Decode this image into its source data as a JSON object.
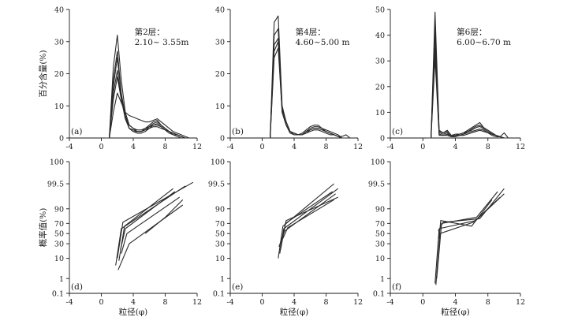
{
  "chart_data": [
    {
      "id": "a",
      "type": "line",
      "panel_label": "(a)",
      "ylabel": "百分含量(%)",
      "xlabel": "",
      "annotation": [
        "第2层：",
        "2.10~ 3.55m"
      ],
      "xlim": [
        -4,
        12
      ],
      "ylim": [
        0,
        40
      ],
      "x_ticks": [
        -4,
        0,
        4,
        8,
        12
      ],
      "y_ticks": [
        0,
        10,
        20,
        30,
        40
      ],
      "series": [
        {
          "x": [
            0.5,
            1,
            1.5,
            2,
            2.5,
            3,
            3.5,
            4,
            4.5,
            5,
            5.5,
            6,
            6.5,
            7,
            7.5,
            8,
            8.5,
            9,
            9.5,
            10,
            10.5,
            11
          ],
          "y": [
            0,
            0,
            22,
            32,
            18,
            8,
            4,
            3,
            2.5,
            2.5,
            3,
            4,
            5,
            5.5,
            4,
            3,
            2,
            1.5,
            1,
            0.5,
            0,
            0
          ]
        },
        {
          "x": [
            0.5,
            1,
            1.5,
            2,
            2.5,
            3,
            3.5,
            4,
            4.5,
            5,
            5.5,
            6,
            6.5,
            7,
            7.5,
            8,
            8.5,
            9,
            9.5,
            10,
            10.5,
            11
          ],
          "y": [
            0,
            0,
            18,
            27,
            14,
            7,
            3,
            2.5,
            2,
            2,
            2.5,
            3.5,
            4.5,
            5,
            4,
            3,
            2,
            1,
            1,
            0.5,
            0,
            0
          ]
        },
        {
          "x": [
            0.5,
            1,
            1.5,
            2,
            2.5,
            3,
            3.5,
            4,
            4.5,
            5,
            5.5,
            6,
            6.5,
            7,
            7.5,
            8,
            8.5,
            9,
            9.5,
            10,
            10.5,
            11
          ],
          "y": [
            0,
            0,
            16,
            25,
            13,
            6,
            3,
            2,
            2,
            2,
            3,
            3.5,
            4,
            4.5,
            3.5,
            2.5,
            2,
            1.5,
            1,
            0.5,
            0,
            0
          ]
        },
        {
          "x": [
            0.5,
            1,
            1.5,
            2,
            2.5,
            3,
            3.5,
            4,
            4.5,
            5,
            5.5,
            6,
            6.5,
            7,
            7.5,
            8,
            8.5,
            9,
            9.5,
            10,
            10.5,
            11
          ],
          "y": [
            0,
            0,
            14,
            21,
            12,
            6,
            3,
            2,
            1.5,
            1.5,
            2,
            3,
            4,
            4,
            3.5,
            2.5,
            1.5,
            1,
            0.5,
            0,
            0,
            0
          ]
        },
        {
          "x": [
            0.5,
            1,
            1.5,
            2,
            2.5,
            3,
            3.5,
            4,
            4.5,
            5,
            5.5,
            6,
            6.5,
            7,
            7.5,
            8,
            8.5,
            9,
            9.5,
            10,
            10.5,
            11
          ],
          "y": [
            0,
            0,
            12,
            19,
            12,
            7,
            4,
            3,
            2,
            2,
            2.5,
            3,
            3.5,
            3.5,
            3,
            2.5,
            2,
            1.5,
            1,
            0.5,
            0,
            0
          ]
        },
        {
          "x": [
            0.5,
            1,
            1.5,
            2,
            2.5,
            3,
            3.5,
            4,
            4.5,
            5,
            5.5,
            6,
            6.5,
            7,
            7.5,
            8,
            8.5,
            9,
            9.5,
            10,
            10.5,
            11
          ],
          "y": [
            0,
            0,
            8,
            14,
            11,
            8,
            7,
            6.5,
            6,
            5.5,
            5,
            5,
            5.5,
            6,
            5,
            4,
            3,
            2,
            1.5,
            1,
            0.5,
            0
          ]
        }
      ]
    },
    {
      "id": "b",
      "type": "line",
      "panel_label": "(b)",
      "ylabel": "",
      "xlabel": "",
      "annotation": [
        "第4层：",
        "4.60~5.00 m"
      ],
      "xlim": [
        -4,
        12
      ],
      "ylim": [
        0,
        40
      ],
      "x_ticks": [
        -4,
        0,
        4,
        8,
        12
      ],
      "y_ticks": [
        0,
        10,
        20,
        30,
        40
      ],
      "series": [
        {
          "x": [
            0.5,
            1,
            1.5,
            2,
            2.5,
            3,
            3.5,
            4,
            4.5,
            5,
            5.5,
            6,
            6.5,
            7,
            7.5,
            8,
            8.5,
            9,
            9.5,
            10,
            10.5
          ],
          "y": [
            0,
            0,
            36,
            38,
            10,
            5,
            2,
            1.5,
            1,
            1.5,
            2.5,
            3.5,
            4,
            4,
            3,
            2.5,
            2,
            1.5,
            1,
            0,
            0
          ]
        },
        {
          "x": [
            0.5,
            1,
            1.5,
            2,
            2.5,
            3,
            3.5,
            4,
            4.5,
            5,
            5.5,
            6,
            6.5,
            7,
            7.5,
            8,
            8.5,
            9,
            9.5,
            10,
            10.5
          ],
          "y": [
            0,
            0,
            32,
            34,
            9,
            5,
            2,
            1.5,
            1,
            1,
            2,
            3,
            3.5,
            3.5,
            3,
            2,
            1.5,
            1,
            0.5,
            0,
            0
          ]
        },
        {
          "x": [
            0.5,
            1,
            1.5,
            2,
            2.5,
            3,
            3.5,
            4,
            4.5,
            5,
            5.5,
            6,
            6.5,
            7,
            7.5,
            8,
            8.5,
            9,
            9.5,
            10,
            10.5
          ],
          "y": [
            0,
            0,
            29,
            31,
            9,
            5,
            2,
            1.5,
            1,
            1,
            2,
            2.5,
            3,
            3,
            2.5,
            2,
            1.5,
            1,
            0.5,
            0,
            0
          ]
        },
        {
          "x": [
            0.5,
            1,
            1.5,
            2,
            2.5,
            3,
            3.5,
            4,
            4.5,
            5,
            5.5,
            6,
            6.5,
            7,
            7.5,
            8,
            8.5,
            9,
            9.5,
            10,
            10.5
          ],
          "y": [
            0,
            0,
            27,
            30,
            8,
            4,
            2,
            1,
            1,
            1,
            1.5,
            2.5,
            3,
            3,
            2.5,
            2,
            1.5,
            1,
            0.5,
            0,
            0
          ]
        },
        {
          "x": [
            0.5,
            1,
            1.5,
            2,
            2.5,
            3,
            3.5,
            4,
            4.5,
            5,
            5.5,
            6,
            6.5,
            7,
            7.5,
            8,
            8.5,
            9,
            9.5,
            10,
            10.5,
            11
          ],
          "y": [
            0,
            0,
            25,
            28,
            8,
            4,
            1.5,
            1,
            1,
            1,
            1.5,
            2,
            2.5,
            2.5,
            2,
            1.5,
            1,
            1,
            0.5,
            0.5,
            1,
            0
          ]
        }
      ]
    },
    {
      "id": "c",
      "type": "line",
      "panel_label": "(c)",
      "ylabel": "",
      "xlabel": "",
      "annotation": [
        "第6层：",
        "6.00~6.70 m"
      ],
      "xlim": [
        -4,
        12
      ],
      "ylim": [
        0,
        50
      ],
      "x_ticks": [
        -4,
        0,
        4,
        8,
        12
      ],
      "y_ticks": [
        0,
        10,
        20,
        30,
        40,
        50
      ],
      "series": [
        {
          "x": [
            0.5,
            1,
            1.5,
            2,
            2.5,
            3,
            3.5,
            4,
            4.5,
            5,
            5.5,
            6,
            6.5,
            7,
            7.5,
            8,
            8.5,
            9,
            9.5,
            10,
            10.5
          ],
          "y": [
            0,
            0,
            49,
            3,
            2,
            3,
            1,
            1.5,
            1.5,
            2,
            3,
            4,
            5,
            6,
            4,
            3,
            2,
            1,
            0.5,
            0,
            0
          ]
        },
        {
          "x": [
            0.5,
            1,
            1.5,
            2,
            2.5,
            3,
            3.5,
            4,
            4.5,
            5,
            5.5,
            6,
            6.5,
            7,
            7.5,
            8,
            8.5,
            9,
            9.5,
            10,
            10.5
          ],
          "y": [
            0,
            0,
            44,
            2.5,
            2,
            2.5,
            1,
            1,
            1.5,
            2,
            2.5,
            3.5,
            4.5,
            5,
            4,
            3,
            2,
            1,
            0.5,
            0,
            0
          ]
        },
        {
          "x": [
            0.5,
            1,
            1.5,
            2,
            2.5,
            3,
            3.5,
            4,
            4.5,
            5,
            5.5,
            6,
            6.5,
            7,
            7.5,
            8,
            8.5,
            9,
            9.5,
            10,
            10.5
          ],
          "y": [
            0,
            0,
            40,
            2,
            1.5,
            2,
            0.5,
            1,
            1,
            1.5,
            2.5,
            3,
            4,
            4.5,
            3.5,
            2.5,
            1.5,
            1,
            0.5,
            0,
            0
          ]
        },
        {
          "x": [
            0.5,
            1,
            1.5,
            2,
            2.5,
            3,
            3.5,
            4,
            4.5,
            5,
            5.5,
            6,
            6.5,
            7,
            7.5,
            8,
            8.5,
            9,
            9.5,
            10,
            10.5
          ],
          "y": [
            0,
            0,
            35,
            1.5,
            1,
            1.5,
            0.5,
            0.5,
            1,
            1.5,
            2,
            2.5,
            3,
            3.5,
            3,
            2,
            1.5,
            1,
            0.5,
            0,
            0
          ]
        },
        {
          "x": [
            0.5,
            1,
            1.5,
            2,
            2.5,
            3,
            3.5,
            4,
            4.5,
            5,
            5.5,
            6,
            6.5,
            7,
            7.5,
            8,
            8.5,
            9,
            9.5,
            10,
            10.5
          ],
          "y": [
            0,
            0,
            31,
            1,
            1,
            1,
            0.5,
            0.5,
            1,
            1,
            1.5,
            2,
            2.5,
            3,
            2.5,
            2,
            1,
            0.5,
            0.5,
            2,
            0
          ]
        }
      ]
    },
    {
      "id": "d",
      "type": "line",
      "panel_label": "(d)",
      "ylabel": "概率值(%)",
      "xlabel": "粒径(φ)",
      "xlim": [
        -4,
        12
      ],
      "ylim": [
        0.1,
        99.99
      ],
      "y_scale": "probability",
      "x_ticks": [
        -4,
        0,
        4,
        8,
        12
      ],
      "y_ticks": [
        0.1,
        1,
        10,
        30,
        50,
        70,
        90,
        99.5,
        100
      ],
      "y_tick_labels": [
        "0.1",
        "1",
        "10",
        "30",
        "50",
        "70",
        "90",
        "99.5",
        "100"
      ],
      "series": [
        {
          "x": [
            2,
            2.7,
            11.5
          ],
          "y": [
            10,
            72,
            99.6
          ]
        },
        {
          "x": [
            1.8,
            2.5,
            10.5
          ],
          "y": [
            5,
            60,
            99.3
          ]
        },
        {
          "x": [
            2.2,
            2.9,
            9
          ],
          "y": [
            8,
            65,
            99
          ]
        },
        {
          "x": [
            2.5,
            3.2,
            9.8
          ],
          "y": [
            15,
            50,
            97
          ]
        },
        {
          "x": [
            2.1,
            3.5,
            10.2
          ],
          "y": [
            3,
            30,
            93
          ]
        },
        {
          "x": [
            5.5,
            8,
            10.2
          ],
          "y": [
            50,
            80,
            96
          ]
        },
        {
          "x": [
            2.4,
            3,
            9.2
          ],
          "y": [
            20,
            60,
            98.5
          ]
        }
      ]
    },
    {
      "id": "e",
      "type": "line",
      "panel_label": "(e)",
      "ylabel": "",
      "xlabel": "粒径(φ)",
      "xlim": [
        -4,
        12
      ],
      "ylim": [
        0.1,
        99.99
      ],
      "y_scale": "probability",
      "x_ticks": [
        -4,
        0,
        4,
        8,
        12
      ],
      "y_ticks": [
        0.1,
        1,
        10,
        30,
        50,
        70,
        90,
        99.5,
        100
      ],
      "y_tick_labels": [
        "0.1",
        "1",
        "10",
        "30",
        "50",
        "70",
        "90",
        "99.5",
        "100"
      ],
      "series": [
        {
          "x": [
            2,
            2.6,
            9
          ],
          "y": [
            10,
            65,
            99.5
          ]
        },
        {
          "x": [
            2.2,
            2.7,
            9.5
          ],
          "y": [
            15,
            60,
            99
          ]
        },
        {
          "x": [
            2.3,
            2.9,
            8.8
          ],
          "y": [
            20,
            70,
            98.5
          ]
        },
        {
          "x": [
            2.1,
            2.8,
            9.2
          ],
          "y": [
            25,
            55,
            98
          ]
        },
        {
          "x": [
            2.4,
            3,
            9.5
          ],
          "y": [
            30,
            75,
            97
          ]
        },
        {
          "x": [
            2.6,
            3.2,
            9
          ],
          "y": [
            40,
            62,
            96
          ]
        }
      ]
    },
    {
      "id": "f",
      "type": "line",
      "panel_label": "(f)",
      "ylabel": "",
      "xlabel": "粒径(φ)",
      "xlim": [
        -4,
        12
      ],
      "ylim": [
        0.1,
        99.99
      ],
      "y_scale": "probability",
      "x_ticks": [
        -4,
        0,
        4,
        8,
        12
      ],
      "y_ticks": [
        0.1,
        1,
        10,
        30,
        50,
        70,
        90,
        99.5,
        100
      ],
      "y_tick_labels": [
        "0.1",
        "1",
        "10",
        "30",
        "50",
        "70",
        "90",
        "99.5",
        "100"
      ],
      "series": [
        {
          "x": [
            1.5,
            2,
            6.5,
            10
          ],
          "y": [
            0.5,
            60,
            75,
            98
          ]
        },
        {
          "x": [
            1.6,
            2.1,
            6.2,
            9.5
          ],
          "y": [
            0.4,
            50,
            72,
            97
          ]
        },
        {
          "x": [
            1.7,
            2.3,
            6.6,
            9.2
          ],
          "y": [
            1,
            70,
            80,
            98.5
          ]
        },
        {
          "x": [
            2.0,
            2.2,
            6,
            8.5
          ],
          "y": [
            40,
            75,
            65,
            96
          ]
        },
        {
          "x": [
            1.9,
            2.5,
            7,
            10
          ],
          "y": [
            55,
            72,
            78,
            99
          ]
        }
      ]
    }
  ]
}
